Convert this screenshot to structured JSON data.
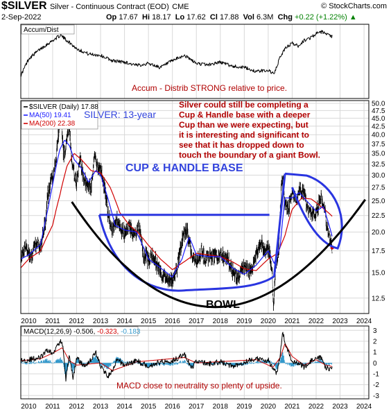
{
  "header": {
    "symbol": "$SILVER",
    "description": "Silver - Continuous Contract (EOD)",
    "exchange": "CME",
    "logo": "© StockCharts.com",
    "date": "2-Sep-2022",
    "open_label": "Op",
    "open": "17.67",
    "high_label": "Hi",
    "high": "18.17",
    "low_label": "Lo",
    "low": "17.62",
    "close_label": "Cl",
    "close": "17.88",
    "volume_label": "Vol",
    "volume": "6.3M",
    "change_label": "Chg",
    "change": "+0.22 (+1.22%)",
    "up_arrow": "▲"
  },
  "colors": {
    "price": "#000000",
    "ma50": "#1a1aff",
    "ma200": "#d00000",
    "annotation_red": "#b00000",
    "annotation_blue": "#3344dd",
    "pattern_blue": "#2a35e0",
    "bowl": "#000000",
    "macd_line": "#000000",
    "macd_signal": "#d00000",
    "macd_hist": "#3399cc",
    "grid": "#d8d8d8"
  },
  "chart_data": [
    {
      "type": "line",
      "panel": "accum-dist",
      "series": [
        {
          "name": "Accum/Dist",
          "x": [
            2009.67,
            2010.0,
            2010.5,
            2011.0,
            2011.33,
            2011.67,
            2012.0,
            2012.5,
            2013.0,
            2013.5,
            2014.0,
            2014.5,
            2015.0,
            2015.5,
            2016.0,
            2016.5,
            2017.0,
            2017.5,
            2018.0,
            2018.5,
            2019.0,
            2019.5,
            2020.0,
            2020.25,
            2020.5,
            2020.75,
            2021.0,
            2021.25,
            2021.5,
            2021.75,
            2022.0,
            2022.25,
            2022.5,
            2022.67
          ],
          "values": [
            0.3,
            0.55,
            0.7,
            0.82,
            0.9,
            0.8,
            0.7,
            0.62,
            0.6,
            0.52,
            0.5,
            0.45,
            0.48,
            0.42,
            0.52,
            0.6,
            0.48,
            0.46,
            0.5,
            0.44,
            0.42,
            0.36,
            0.38,
            0.32,
            0.58,
            0.72,
            0.78,
            0.74,
            0.82,
            0.86,
            0.92,
            0.95,
            0.9,
            0.88
          ]
        }
      ],
      "annotations": [
        "Accum - Distrib STRONG relative to price."
      ]
    },
    {
      "type": "line",
      "panel": "price",
      "legend": [
        "$SILVER (Daily) 17.88",
        "MA(50) 19.41",
        "MA(200) 22.38"
      ],
      "x_ticks": [
        "2010",
        "2011",
        "2012",
        "2013",
        "2014",
        "2015",
        "2016",
        "2017",
        "2018",
        "2019",
        "2020",
        "2021",
        "2022",
        "2023",
        "2024"
      ],
      "y_ticks": [
        "12.5",
        "15.0",
        "17.5",
        "20.0",
        "22.5",
        "25.0",
        "27.5",
        "30.0",
        "32.5",
        "35.0",
        "37.5",
        "40.0",
        "42.5",
        "45.0",
        "47.5",
        "50.0"
      ],
      "y_scale": "log",
      "ylim": [
        11.2,
        51
      ],
      "xlim": [
        2009.67,
        2024.2
      ],
      "series": [
        {
          "name": "$SILVER (Daily) 17.88",
          "x": [
            2009.67,
            2009.75,
            2009.85,
            2010.0,
            2010.1,
            2010.25,
            2010.4,
            2010.5,
            2010.6,
            2010.7,
            2010.8,
            2010.9,
            2011.0,
            2011.1,
            2011.2,
            2011.3,
            2011.36,
            2011.45,
            2011.55,
            2011.62,
            2011.7,
            2011.8,
            2011.9,
            2012.0,
            2012.15,
            2012.3,
            2012.45,
            2012.6,
            2012.75,
            2012.9,
            2013.0,
            2013.15,
            2013.3,
            2013.5,
            2013.65,
            2013.85,
            2014.0,
            2014.2,
            2014.4,
            2014.6,
            2014.8,
            2015.0,
            2015.2,
            2015.5,
            2015.8,
            2016.0,
            2016.2,
            2016.4,
            2016.6,
            2016.8,
            2017.0,
            2017.2,
            2017.4,
            2017.6,
            2017.8,
            2018.0,
            2018.3,
            2018.6,
            2018.8,
            2019.0,
            2019.3,
            2019.5,
            2019.7,
            2019.9,
            2020.0,
            2020.15,
            2020.22,
            2020.3,
            2020.45,
            2020.55,
            2020.62,
            2020.7,
            2020.85,
            2021.0,
            2021.1,
            2021.2,
            2021.35,
            2021.5,
            2021.65,
            2021.8,
            2022.0,
            2022.1,
            2022.2,
            2022.3,
            2022.4,
            2022.5,
            2022.6,
            2022.67
          ],
          "values": [
            16.5,
            17.2,
            18.2,
            17.2,
            16.8,
            18.0,
            18.5,
            18.0,
            19.8,
            21.5,
            26.0,
            28.5,
            29.5,
            32.0,
            37.0,
            45.0,
            44.5,
            35.0,
            36.0,
            40.5,
            42.0,
            32.0,
            30.5,
            28.5,
            34.0,
            29.0,
            28.0,
            27.5,
            34.0,
            32.0,
            31.0,
            28.0,
            23.0,
            20.0,
            22.0,
            20.5,
            19.8,
            21.0,
            19.5,
            21.0,
            17.0,
            16.5,
            16.8,
            15.0,
            14.2,
            14.0,
            15.5,
            19.0,
            20.5,
            17.0,
            16.0,
            17.5,
            16.5,
            17.0,
            16.8,
            17.0,
            16.5,
            14.5,
            14.7,
            15.5,
            15.0,
            17.0,
            18.5,
            17.3,
            18.0,
            15.5,
            12.0,
            15.0,
            18.0,
            27.5,
            28.5,
            24.0,
            23.5,
            27.0,
            26.0,
            25.5,
            27.5,
            26.0,
            23.5,
            22.5,
            23.0,
            24.0,
            25.5,
            24.5,
            22.0,
            20.5,
            19.0,
            17.88
          ]
        },
        {
          "name": "MA(50) 19.41",
          "x": [
            2009.67,
            2010.0,
            2010.5,
            2010.8,
            2011.0,
            2011.3,
            2011.5,
            2011.7,
            2011.9,
            2012.2,
            2012.5,
            2012.8,
            2013.0,
            2013.3,
            2013.6,
            2014.0,
            2014.5,
            2015.0,
            2015.5,
            2016.0,
            2016.4,
            2016.7,
            2017.0,
            2017.5,
            2018.0,
            2018.5,
            2019.0,
            2019.5,
            2020.0,
            2020.25,
            2020.5,
            2020.7,
            2021.0,
            2021.3,
            2021.6,
            2022.0,
            2022.3,
            2022.5,
            2022.67
          ],
          "values": [
            16.5,
            17.0,
            18.3,
            23.5,
            28.0,
            36.0,
            38.5,
            37.0,
            33.5,
            31.5,
            28.5,
            31.0,
            30.0,
            25.5,
            21.0,
            20.3,
            20.0,
            16.5,
            15.5,
            14.5,
            16.5,
            19.3,
            17.0,
            16.8,
            16.8,
            15.5,
            14.8,
            15.8,
            17.5,
            16.0,
            18.0,
            25.5,
            25.5,
            26.5,
            25.0,
            23.2,
            24.0,
            21.5,
            19.41
          ]
        },
        {
          "name": "MA(200) 22.38",
          "x": [
            2009.67,
            2010.0,
            2010.5,
            2011.0,
            2011.3,
            2011.6,
            2011.9,
            2012.2,
            2012.6,
            2013.0,
            2013.4,
            2013.8,
            2014.2,
            2014.6,
            2015.0,
            2015.5,
            2016.0,
            2016.5,
            2017.0,
            2017.5,
            2018.0,
            2018.5,
            2019.0,
            2019.5,
            2020.0,
            2020.4,
            2020.7,
            2021.0,
            2021.4,
            2021.8,
            2022.2,
            2022.5,
            2022.67
          ],
          "values": [
            15.5,
            16.5,
            17.5,
            21.0,
            26.0,
            32.0,
            35.0,
            33.5,
            31.0,
            30.5,
            27.5,
            23.0,
            21.0,
            19.8,
            18.2,
            16.5,
            15.3,
            16.2,
            17.2,
            17.0,
            16.8,
            16.2,
            15.4,
            15.2,
            16.5,
            17.2,
            19.5,
            23.5,
            25.5,
            25.3,
            24.0,
            23.0,
            22.38
          ]
        }
      ],
      "annotations": [
        "SILVER: 13-year",
        "Silver could still be completing a",
        "Cup & Handle base with a deeper",
        "Cup than we were expecting, but",
        "it is interesting and significant to",
        "see that it has dropped down to",
        "touch the boundary of a giant Bowl.",
        "CUP & HANDLE BASE",
        "BOWL"
      ]
    },
    {
      "type": "line",
      "panel": "macd",
      "legend": [
        "MACD(12,26,9) -0.506, ",
        "-0.323, ",
        "-0.183"
      ],
      "x_ticks": [
        "2010",
        "2011",
        "2012",
        "2013",
        "2014",
        "2015",
        "2016",
        "2017",
        "2018",
        "2019",
        "2020",
        "2021",
        "2022",
        "2023",
        "2024"
      ],
      "y_ticks": [
        "3",
        "2",
        "1",
        "0",
        "-1",
        "-2",
        "-3"
      ],
      "ylim": [
        -3.3,
        3.4
      ],
      "series": [
        {
          "name": "MACD",
          "x": [
            2009.67,
            2010.0,
            2010.5,
            2010.8,
            2011.0,
            2011.2,
            2011.4,
            2011.55,
            2011.7,
            2011.85,
            2012.0,
            2012.3,
            2012.6,
            2012.8,
            2013.0,
            2013.3,
            2013.5,
            2013.7,
            2014.0,
            2014.5,
            2015.0,
            2015.5,
            2016.0,
            2016.5,
            2016.8,
            2017.0,
            2017.5,
            2018.0,
            2018.5,
            2019.0,
            2019.5,
            2019.8,
            2020.0,
            2020.2,
            2020.35,
            2020.5,
            2020.6,
            2020.75,
            2021.0,
            2021.2,
            2021.5,
            2021.8,
            2022.0,
            2022.2,
            2022.4,
            2022.55,
            2022.67
          ],
          "values": [
            0.2,
            0.3,
            0.5,
            1.2,
            0.8,
            1.8,
            2.0,
            -1.5,
            0.8,
            -1.5,
            0.5,
            -0.3,
            0.3,
            1.0,
            -0.3,
            -1.2,
            -0.8,
            0.3,
            -0.2,
            0.2,
            -0.3,
            0.1,
            0.2,
            0.8,
            -0.5,
            0.2,
            -0.1,
            0.1,
            -0.3,
            0.1,
            0.4,
            0.2,
            0.3,
            -0.6,
            -1.0,
            0.8,
            2.8,
            1.5,
            0.2,
            0.1,
            -0.4,
            0.2,
            0.3,
            0.5,
            -0.4,
            -0.5,
            -0.506
          ]
        },
        {
          "name": "Signal",
          "x": [
            2009.67,
            2010.5,
            2011.0,
            2011.4,
            2011.7,
            2012.0,
            2013.0,
            2013.5,
            2014.5,
            2016.5,
            2017.0,
            2019.5,
            2020.2,
            2020.5,
            2020.7,
            2021.0,
            2021.5,
            2022.0,
            2022.4,
            2022.67
          ],
          "values": [
            0.2,
            0.4,
            0.9,
            1.4,
            0.2,
            -0.2,
            0.0,
            -0.7,
            0.1,
            0.5,
            0.0,
            0.3,
            -0.4,
            0.5,
            1.8,
            0.6,
            -0.2,
            0.3,
            -0.2,
            -0.323
          ]
        }
      ],
      "annotations": [
        "MACD close to neutrality so plenty of upside."
      ]
    }
  ]
}
